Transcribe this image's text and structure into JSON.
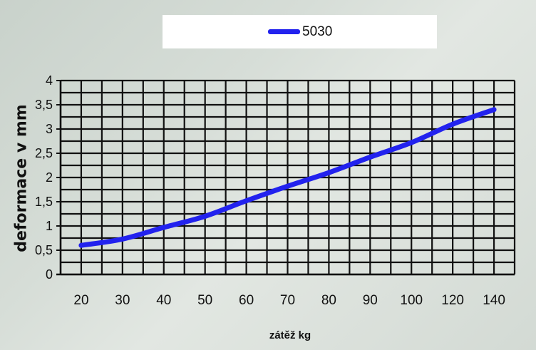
{
  "chart_data": {
    "type": "line",
    "x": [
      "20",
      "30",
      "40",
      "50",
      "60",
      "70",
      "80",
      "90",
      "100",
      "120",
      "140"
    ],
    "series": [
      {
        "name": "5030",
        "values": [
          0.6,
          0.73,
          0.97,
          1.2,
          1.52,
          1.82,
          2.1,
          2.42,
          2.72,
          3.1,
          3.4
        ]
      }
    ],
    "y_ticks": [
      "0",
      "0,5",
      "1",
      "1,5",
      "2",
      "2,5",
      "3",
      "3,5",
      "4"
    ],
    "xlabel": "zátěž kg",
    "ylabel": "deformace v mm",
    "ylim": [
      0,
      4
    ],
    "grid": true,
    "legend": "top",
    "colors": {
      "series": "#2222ee",
      "grid": "#111111"
    }
  }
}
